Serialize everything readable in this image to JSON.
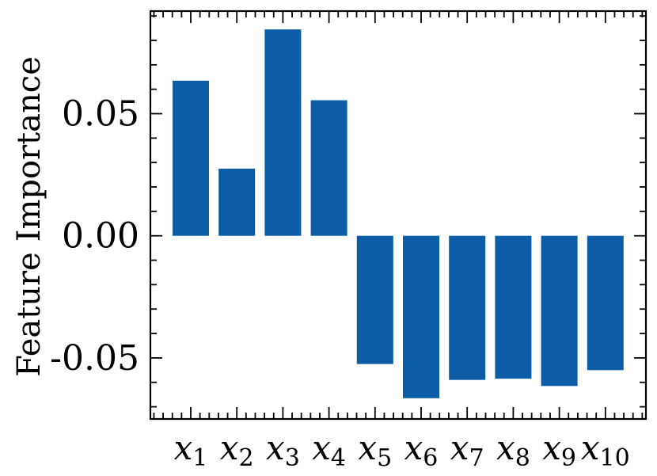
{
  "chart_data": {
    "type": "bar",
    "title": "",
    "xlabel": "",
    "ylabel": "Feature Importance",
    "categories": [
      {
        "base": "x",
        "sub": "1"
      },
      {
        "base": "x",
        "sub": "2"
      },
      {
        "base": "x",
        "sub": "3"
      },
      {
        "base": "x",
        "sub": "4"
      },
      {
        "base": "x",
        "sub": "5"
      },
      {
        "base": "x",
        "sub": "6"
      },
      {
        "base": "x",
        "sub": "7"
      },
      {
        "base": "x",
        "sub": "8"
      },
      {
        "base": "x",
        "sub": "9"
      },
      {
        "base": "x",
        "sub": "10"
      }
    ],
    "values": [
      0.0635,
      0.0275,
      0.0845,
      0.0555,
      -0.0525,
      -0.0665,
      -0.059,
      -0.0585,
      -0.0615,
      -0.055
    ],
    "ylim": [
      -0.075,
      0.092
    ],
    "yticks": [
      -0.05,
      0.0,
      0.05
    ],
    "ytick_labels": [
      "-0.05",
      "0.00",
      "0.05"
    ],
    "bar_color": "#0c5da5",
    "grid": false,
    "ticks_direction": "in",
    "ticks_on_all_sides": true,
    "minor_ticks": true
  }
}
